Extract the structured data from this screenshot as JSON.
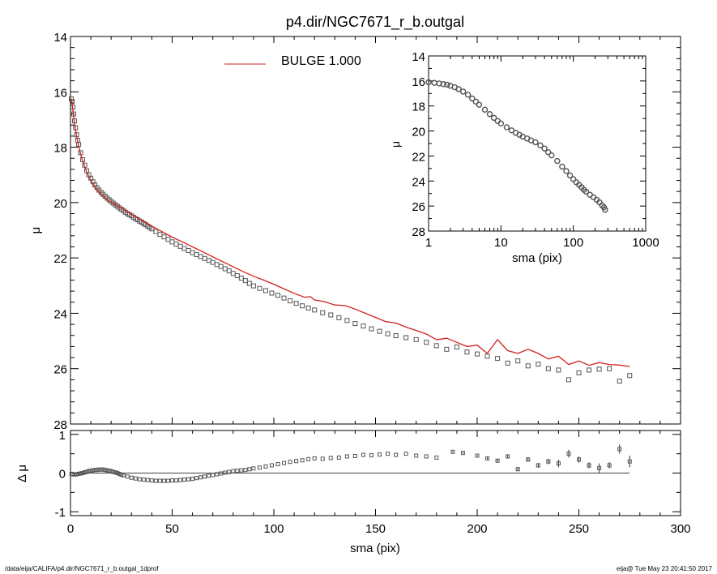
{
  "chart_data": [
    {
      "type": "scatter",
      "panel": "main",
      "title": "p4.dir/NGC7671_r_b.outgal",
      "xlabel": "",
      "ylabel": "μ",
      "xlim": [
        0,
        300
      ],
      "ylim": [
        28,
        14
      ],
      "x_inverted": false,
      "y_inverted": true,
      "x_ticks": [
        "0",
        "50",
        "100",
        "150",
        "200",
        "250",
        "300"
      ],
      "y_ticks": [
        "14",
        "16",
        "18",
        "20",
        "22",
        "24",
        "26",
        "28"
      ],
      "legend": {
        "label": "BULGE  1.000",
        "color": "#d42020",
        "placement": "top-center"
      },
      "series": [
        {
          "kind": "data-points",
          "color": "#555555",
          "x": [
            0.4,
            0.8,
            1.2,
            1.6,
            2.0,
            2.5,
            3.0,
            3.5,
            4,
            5,
            6,
            7,
            8,
            9,
            10,
            11,
            12,
            13,
            14,
            15,
            16,
            17,
            18,
            19,
            20,
            21,
            22,
            23,
            24,
            25,
            26,
            27,
            28,
            29,
            30,
            31,
            32,
            33,
            34,
            35,
            36,
            37,
            38,
            39,
            40,
            42,
            44,
            46,
            48,
            50,
            52,
            54,
            56,
            58,
            60,
            62,
            64,
            66,
            68,
            70,
            72,
            74,
            76,
            78,
            80,
            82,
            84,
            86,
            88,
            90,
            93,
            96,
            99,
            102,
            105,
            108,
            111,
            114,
            117,
            120,
            124,
            128,
            132,
            136,
            140,
            144,
            148,
            152,
            156,
            160,
            165,
            170,
            175,
            180,
            185,
            190,
            195,
            200,
            205,
            210,
            215,
            220,
            225,
            230,
            235,
            240,
            245,
            250,
            255,
            260,
            265,
            270,
            275
          ],
          "y": [
            16.25,
            16.35,
            16.55,
            16.8,
            17.05,
            17.3,
            17.55,
            17.75,
            17.9,
            18.2,
            18.45,
            18.65,
            18.85,
            19.0,
            19.12,
            19.25,
            19.36,
            19.46,
            19.55,
            19.63,
            19.7,
            19.77,
            19.84,
            19.9,
            19.96,
            20.02,
            20.08,
            20.13,
            20.19,
            20.24,
            20.29,
            20.35,
            20.4,
            20.44,
            20.48,
            20.53,
            20.58,
            20.62,
            20.67,
            20.71,
            20.76,
            20.8,
            20.85,
            20.9,
            20.95,
            21.05,
            21.15,
            21.24,
            21.33,
            21.42,
            21.5,
            21.58,
            21.66,
            21.73,
            21.81,
            21.88,
            21.95,
            22.02,
            22.09,
            22.16,
            22.24,
            22.31,
            22.39,
            22.47,
            22.56,
            22.64,
            22.73,
            22.82,
            22.92,
            23.01,
            23.1,
            23.18,
            23.27,
            23.35,
            23.45,
            23.55,
            23.64,
            23.73,
            23.81,
            23.88,
            23.98,
            24.06,
            24.16,
            24.26,
            24.37,
            24.46,
            24.56,
            24.65,
            24.74,
            24.81,
            24.88,
            24.95,
            25.05,
            25.17,
            25.3,
            25.22,
            25.4,
            25.47,
            25.55,
            25.63,
            25.8,
            25.72,
            25.9,
            25.84,
            26.0,
            26.05,
            26.4,
            26.15,
            26.05,
            26.02,
            26.0,
            26.45,
            26.25
          ]
        },
        {
          "kind": "model-line",
          "name": "BULGE",
          "color": "#d42020",
          "x": [
            0.4,
            1,
            2,
            3,
            4,
            5,
            6,
            8,
            10,
            12,
            14,
            16,
            18,
            20,
            22,
            25,
            28,
            30,
            35,
            40,
            45,
            50,
            55,
            60,
            65,
            70,
            75,
            80,
            85,
            90,
            95,
            100,
            105,
            110,
            115,
            118,
            120,
            125,
            130,
            135,
            140,
            145,
            150,
            155,
            160,
            165,
            170,
            175,
            180,
            185,
            190,
            195,
            200,
            205,
            210,
            215,
            220,
            225,
            230,
            235,
            240,
            245,
            250,
            255,
            260,
            265,
            270,
            275
          ],
          "y": [
            16.25,
            16.55,
            17.15,
            17.6,
            17.95,
            18.25,
            18.5,
            18.9,
            19.2,
            19.45,
            19.63,
            19.77,
            19.89,
            19.99,
            20.07,
            20.2,
            20.33,
            20.43,
            20.65,
            20.85,
            21.05,
            21.25,
            21.42,
            21.6,
            21.78,
            21.96,
            22.14,
            22.32,
            22.5,
            22.66,
            22.8,
            22.95,
            23.12,
            23.28,
            23.42,
            23.4,
            23.52,
            23.58,
            23.7,
            23.72,
            23.85,
            24.0,
            24.15,
            24.3,
            24.35,
            24.5,
            24.62,
            24.75,
            24.95,
            24.9,
            25.05,
            25.2,
            25.15,
            25.45,
            24.95,
            25.35,
            25.45,
            25.3,
            25.45,
            25.65,
            25.55,
            25.85,
            25.72,
            25.88,
            25.78,
            25.85,
            25.87,
            25.92
          ]
        }
      ]
    },
    {
      "type": "scatter",
      "panel": "residual",
      "xlabel": "sma (pix)",
      "ylabel": "Δ μ",
      "xlim": [
        0,
        300
      ],
      "ylim": [
        -1.1,
        1.1
      ],
      "x_ticks": [
        "0",
        "50",
        "100",
        "150",
        "200",
        "250",
        "300"
      ],
      "y_ticks": [
        "1",
        "0",
        "-1"
      ],
      "zero_line": true,
      "series": [
        {
          "kind": "residual-points",
          "color": "#555555",
          "x": [
            0.5,
            1,
            2,
            3,
            4,
            5,
            6,
            7,
            8,
            9,
            10,
            11,
            12,
            13,
            14,
            15,
            16,
            17,
            18,
            19,
            20,
            21,
            22,
            23,
            24,
            25,
            26,
            28,
            30,
            32,
            34,
            36,
            38,
            40,
            42,
            44,
            46,
            48,
            50,
            52,
            54,
            56,
            58,
            60,
            62,
            64,
            66,
            68,
            70,
            72,
            74,
            76,
            78,
            80,
            82,
            84,
            86,
            88,
            90,
            93,
            96,
            99,
            102,
            105,
            108,
            111,
            114,
            117,
            120,
            124,
            128,
            132,
            136,
            140,
            144,
            148,
            152,
            156,
            160,
            165,
            170,
            175,
            180,
            188,
            193,
            200,
            205,
            210,
            215,
            220,
            225,
            230,
            235,
            240,
            245,
            250,
            255,
            260,
            265,
            270,
            275
          ],
          "y": [
            -0.02,
            -0.03,
            -0.04,
            -0.03,
            -0.02,
            -0.01,
            0.0,
            0.02,
            0.03,
            0.05,
            0.06,
            0.07,
            0.08,
            0.08,
            0.09,
            0.09,
            0.09,
            0.08,
            0.07,
            0.06,
            0.05,
            0.03,
            0.02,
            0.0,
            -0.02,
            -0.04,
            -0.06,
            -0.09,
            -0.12,
            -0.14,
            -0.16,
            -0.17,
            -0.18,
            -0.19,
            -0.2,
            -0.2,
            -0.2,
            -0.2,
            -0.19,
            -0.19,
            -0.18,
            -0.17,
            -0.16,
            -0.15,
            -0.13,
            -0.11,
            -0.09,
            -0.07,
            -0.05,
            -0.03,
            -0.01,
            0.01,
            0.03,
            0.05,
            0.06,
            0.07,
            0.08,
            0.1,
            0.12,
            0.14,
            0.17,
            0.2,
            0.23,
            0.26,
            0.29,
            0.31,
            0.33,
            0.36,
            0.38,
            0.37,
            0.39,
            0.4,
            0.43,
            0.44,
            0.47,
            0.46,
            0.48,
            0.5,
            0.47,
            0.5,
            0.45,
            0.43,
            0.4,
            0.55,
            0.52,
            0.45,
            0.38,
            0.32,
            0.43,
            0.1,
            0.35,
            0.2,
            0.3,
            0.25,
            0.5,
            0.35,
            0.2,
            0.13,
            0.2,
            0.62,
            0.3
          ],
          "err": [
            0.01,
            0.01,
            0.01,
            0.01,
            0.01,
            0.01,
            0.01,
            0.01,
            0.01,
            0.01,
            0.01,
            0.01,
            0.01,
            0.01,
            0.01,
            0.01,
            0.01,
            0.01,
            0.01,
            0.01,
            0.01,
            0.01,
            0.01,
            0.01,
            0.01,
            0.01,
            0.01,
            0.01,
            0.01,
            0.01,
            0.01,
            0.01,
            0.01,
            0.01,
            0.01,
            0.01,
            0.01,
            0.01,
            0.01,
            0.01,
            0.01,
            0.01,
            0.01,
            0.01,
            0.01,
            0.01,
            0.01,
            0.01,
            0.01,
            0.01,
            0.01,
            0.01,
            0.01,
            0.01,
            0.01,
            0.01,
            0.01,
            0.01,
            0.01,
            0.01,
            0.01,
            0.01,
            0.01,
            0.01,
            0.01,
            0.01,
            0.01,
            0.01,
            0.01,
            0.01,
            0.01,
            0.01,
            0.01,
            0.01,
            0.01,
            0.01,
            0.01,
            0.01,
            0.01,
            0.01,
            0.01,
            0.01,
            0.01,
            0.02,
            0.02,
            0.02,
            0.03,
            0.04,
            0.03,
            0.05,
            0.06,
            0.06,
            0.07,
            0.1,
            0.1,
            0.08,
            0.08,
            0.12,
            0.08,
            0.12,
            0.15
          ]
        }
      ]
    },
    {
      "type": "scatter",
      "panel": "inset",
      "xlabel": "sma (pix)",
      "ylabel": "μ",
      "x_scale": "log",
      "xlim": [
        1,
        1000
      ],
      "ylim": [
        28,
        14
      ],
      "x_ticks": [
        "1",
        "10",
        "100",
        "1000"
      ],
      "y_ticks": [
        "14",
        "16",
        "18",
        "20",
        "22",
        "24",
        "26",
        "28"
      ],
      "series": [
        {
          "kind": "data-points",
          "color": "#555555",
          "x": [
            1.0,
            1.2,
            1.4,
            1.6,
            1.8,
            2.0,
            2.3,
            2.6,
            3.0,
            3.5,
            4,
            4.5,
            5,
            6,
            7,
            8,
            9,
            10,
            12,
            14,
            16,
            18,
            20,
            23,
            26,
            30,
            35,
            40,
            45,
            50,
            60,
            70,
            80,
            90,
            100,
            110,
            120,
            130,
            140,
            150,
            170,
            190,
            210,
            230,
            250,
            265,
            275
          ],
          "y": [
            16.1,
            16.15,
            16.2,
            16.25,
            16.3,
            16.38,
            16.5,
            16.65,
            16.85,
            17.1,
            17.4,
            17.65,
            17.9,
            18.3,
            18.65,
            18.95,
            19.2,
            19.4,
            19.7,
            19.95,
            20.15,
            20.3,
            20.45,
            20.6,
            20.75,
            20.9,
            21.15,
            21.4,
            21.7,
            21.95,
            22.4,
            22.85,
            23.2,
            23.55,
            23.85,
            24.1,
            24.3,
            24.5,
            24.7,
            24.85,
            25.1,
            25.3,
            25.5,
            25.7,
            25.95,
            26.1,
            26.3
          ]
        }
      ]
    }
  ],
  "footer": {
    "left": "/data/eija/CALIFA/p4.dir/NGC7671_r_b.outgal_1dprof",
    "right": "eija@  Tue May 23 20:41:50 2017"
  }
}
